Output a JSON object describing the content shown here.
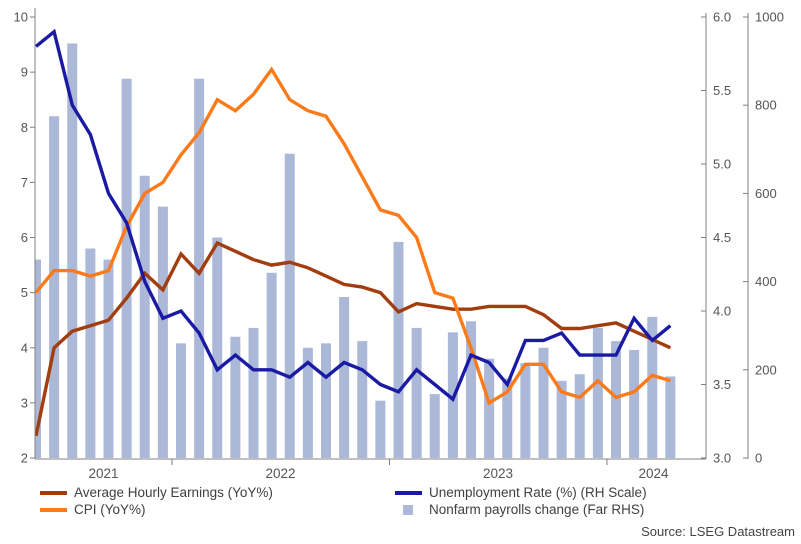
{
  "source": "Source: LSEG Datastream",
  "colors": {
    "ahe": "#A13D0E",
    "cpi": "#FB7A1A",
    "unemployment": "#1A1AA5",
    "payroll_bars": "#ABB8D8",
    "axis": "#808080",
    "tick_text": "#555555",
    "legend_text": "#404040"
  },
  "chart_data": {
    "type": "combo",
    "title": "",
    "x_months": [
      "May-2021",
      "Jun-2021",
      "Jul-2021",
      "Aug-2021",
      "Sep-2021",
      "Oct-2021",
      "Nov-2021",
      "Dec-2021",
      "Jan-2022",
      "Feb-2022",
      "Mar-2022",
      "Apr-2022",
      "May-2022",
      "Jun-2022",
      "Jul-2022",
      "Aug-2022",
      "Sep-2022",
      "Oct-2022",
      "Nov-2022",
      "Dec-2022",
      "Jan-2023",
      "Feb-2023",
      "Mar-2023",
      "Apr-2023",
      "May-2023",
      "Jun-2023",
      "Jul-2023",
      "Aug-2023",
      "Sep-2023",
      "Oct-2023",
      "Nov-2023",
      "Dec-2023",
      "Jan-2024",
      "Feb-2024",
      "Mar-2024",
      "Apr-2024"
    ],
    "year_labels": [
      "2021",
      "2022",
      "2023",
      "2024"
    ],
    "axes": {
      "left": {
        "min": 2,
        "max": 10,
        "ticks": [
          "10",
          "9",
          "8",
          "7",
          "6",
          "5",
          "4",
          "3",
          "2"
        ]
      },
      "right": {
        "min": 3,
        "max": 6,
        "ticks": [
          "6.0",
          "5.5",
          "5.0",
          "4.5",
          "4.0",
          "3.5",
          "3.0"
        ]
      },
      "far_right": {
        "min": 0,
        "max": 1000,
        "ticks": [
          "1000",
          "800",
          "600",
          "400",
          "200",
          "0"
        ]
      }
    },
    "legend_position": "bottom",
    "grid": false,
    "series": [
      {
        "name": "Average Hourly Earnings (YoY%)",
        "type": "line",
        "axis": "left",
        "color": "#A13D0E",
        "values": [
          2.4,
          4.0,
          4.3,
          4.4,
          4.5,
          4.9,
          5.35,
          5.05,
          5.7,
          5.35,
          5.9,
          5.75,
          5.6,
          5.5,
          5.55,
          5.45,
          5.3,
          5.15,
          5.1,
          5.0,
          4.65,
          4.8,
          4.75,
          4.7,
          4.7,
          4.75,
          4.75,
          4.75,
          4.6,
          4.35,
          4.35,
          4.4,
          4.45,
          4.3,
          4.15,
          4.0
        ]
      },
      {
        "name": "CPI (YoY%)",
        "type": "line",
        "axis": "left",
        "color": "#FB7A1A",
        "values": [
          5.0,
          5.4,
          5.4,
          5.3,
          5.4,
          6.2,
          6.8,
          7.0,
          7.5,
          7.9,
          8.5,
          8.3,
          8.6,
          9.05,
          8.5,
          8.3,
          8.2,
          7.7,
          7.1,
          6.5,
          6.4,
          6.0,
          5.0,
          4.9,
          4.0,
          3.0,
          3.2,
          3.7,
          3.7,
          3.2,
          3.1,
          3.4,
          3.1,
          3.2,
          3.5,
          3.4
        ]
      },
      {
        "name": "Unemployment Rate (%) (RH Scale)",
        "type": "line",
        "axis": "right",
        "color": "#1A1AA5",
        "values": [
          5.8,
          5.9,
          5.4,
          5.2,
          4.8,
          4.6,
          4.2,
          3.95,
          4.0,
          3.85,
          3.6,
          3.7,
          3.6,
          3.6,
          3.55,
          3.65,
          3.55,
          3.65,
          3.6,
          3.5,
          3.45,
          3.6,
          3.5,
          3.4,
          3.7,
          3.65,
          3.5,
          3.8,
          3.8,
          3.85,
          3.7,
          3.7,
          3.7,
          3.95,
          3.8,
          3.9
        ]
      },
      {
        "name": "Nonfarm payrolls change (Far RHS)",
        "type": "bar",
        "axis": "far_right",
        "color": "#ABB8D8",
        "values": [
          450,
          775,
          940,
          475,
          450,
          860,
          640,
          570,
          260,
          860,
          500,
          275,
          295,
          420,
          690,
          250,
          260,
          365,
          265,
          130,
          490,
          295,
          145,
          285,
          310,
          225,
          180,
          215,
          250,
          175,
          190,
          295,
          265,
          245,
          320,
          185
        ]
      }
    ]
  }
}
